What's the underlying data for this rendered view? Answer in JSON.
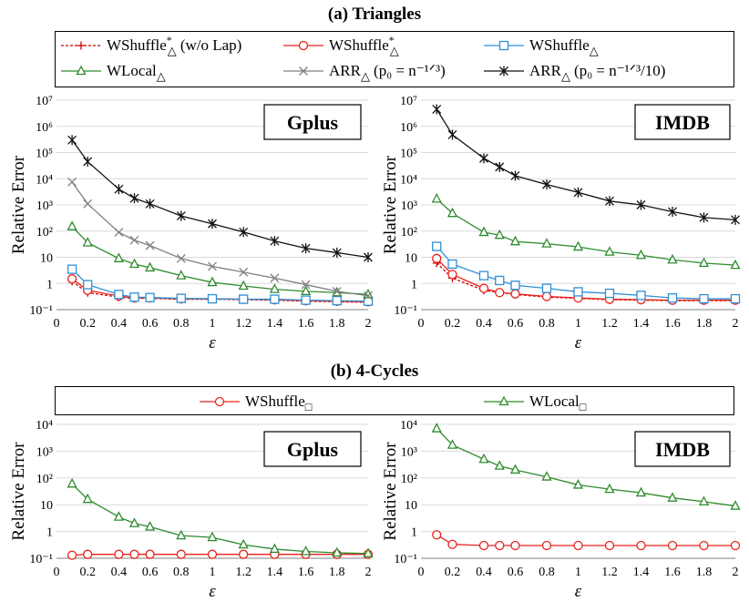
{
  "section_a_title": "(a) Triangles",
  "section_b_title": "(b) 4-Cycles",
  "legend_a": [
    {
      "key": "wshuffle_wolap",
      "label": "WShuffle",
      "sup": "*",
      "sub": "△",
      "suffix": " (w/o Lap)",
      "color": "#cc0000"
    },
    {
      "key": "wshuffle_star",
      "label": "WShuffle",
      "sup": "*",
      "sub": "△",
      "suffix": "",
      "color": "#e8231b"
    },
    {
      "key": "wshuffle",
      "label": "WShuffle",
      "sup": "",
      "sub": "△",
      "suffix": "",
      "color": "#2f8fd6"
    },
    {
      "key": "wlocal",
      "label": "WLocal",
      "sup": "",
      "sub": "△",
      "suffix": "",
      "color": "#2e8b2e"
    },
    {
      "key": "arr1",
      "label": "ARR",
      "sup": "",
      "sub": "△",
      "suffix": " (p₀ = n⁻¹ᐟ³)",
      "color": "#7f7f7f"
    },
    {
      "key": "arr10",
      "label": "ARR",
      "sup": "",
      "sub": "△",
      "suffix": " (p₀ = n⁻¹ᐟ³/10)",
      "color": "#111111"
    }
  ],
  "legend_b": [
    {
      "key": "wshuffle_sq",
      "label": "WShuffle",
      "sub": "□",
      "color": "#e8231b"
    },
    {
      "key": "wlocal_sq",
      "label": "WLocal",
      "sub": "□",
      "color": "#2e8b2e"
    }
  ],
  "chart_data": [
    {
      "id": "tri-gplus",
      "type": "line",
      "title": "Gplus",
      "xlabel": "ε",
      "ylabel": "Relative Error",
      "yscale": "log",
      "ylim": [
        0.1,
        10000000
      ],
      "xlim": [
        0,
        2
      ],
      "xticks": [
        "0",
        "0.2",
        "0.4",
        "0.6",
        "0.8",
        "1",
        "1.2",
        "1.4",
        "1.6",
        "1.8",
        "2"
      ],
      "yticks": [
        "10⁻¹",
        "1",
        "10",
        "10²",
        "10³",
        "10⁴",
        "10⁵",
        "10⁶",
        "10⁷"
      ],
      "x": [
        0.1,
        0.2,
        0.4,
        0.5,
        0.6,
        0.8,
        1.0,
        1.2,
        1.4,
        1.6,
        1.8,
        2.0
      ],
      "series": [
        {
          "name": "WShuffle* (w/o Lap)",
          "key": "wshuffle_wolap",
          "values": [
            1.2,
            0.45,
            0.3,
            0.27,
            0.27,
            0.25,
            0.25,
            0.24,
            0.23,
            0.21,
            0.2,
            0.19
          ]
        },
        {
          "name": "WShuffle*",
          "key": "wshuffle_star",
          "values": [
            1.5,
            0.55,
            0.33,
            0.28,
            0.28,
            0.26,
            0.26,
            0.25,
            0.24,
            0.22,
            0.21,
            0.2
          ]
        },
        {
          "name": "WShuffle",
          "key": "wshuffle",
          "values": [
            3.5,
            0.9,
            0.38,
            0.3,
            0.29,
            0.27,
            0.26,
            0.25,
            0.25,
            0.23,
            0.22,
            0.21
          ]
        },
        {
          "name": "WLocal",
          "key": "wlocal",
          "values": [
            150,
            36,
            9,
            5.5,
            4,
            2,
            1.1,
            0.8,
            0.6,
            0.5,
            0.45,
            0.38
          ]
        },
        {
          "name": "ARR (p0=n^-1/3)",
          "key": "arr1",
          "values": [
            7500,
            1100,
            90,
            45,
            28,
            9,
            4.5,
            2.7,
            1.6,
            0.9,
            0.5,
            0.34
          ]
        },
        {
          "name": "ARR (p0=n^-1/3/10)",
          "key": "arr10",
          "values": [
            300000,
            45000,
            4000,
            1800,
            1100,
            380,
            190,
            92,
            42,
            22,
            15,
            10
          ]
        }
      ]
    },
    {
      "id": "tri-imdb",
      "type": "line",
      "title": "IMDB",
      "xlabel": "ε",
      "ylabel": "Relative Error",
      "yscale": "log",
      "ylim": [
        0.1,
        10000000
      ],
      "xlim": [
        0,
        2
      ],
      "xticks": [
        "0",
        "0.2",
        "0.4",
        "0.6",
        "0.8",
        "1",
        "1.2",
        "1.4",
        "1.6",
        "1.8",
        "2"
      ],
      "yticks": [
        "10⁻¹",
        "1",
        "10",
        "10²",
        "10³",
        "10⁴",
        "10⁵",
        "10⁶",
        "10⁷"
      ],
      "x": [
        0.1,
        0.2,
        0.4,
        0.5,
        0.6,
        0.8,
        1.0,
        1.2,
        1.4,
        1.6,
        1.8,
        2.0
      ],
      "series": [
        {
          "name": "WShuffle* (w/o Lap)",
          "key": "wshuffle_wolap",
          "values": [
            6,
            1.6,
            0.55,
            0.45,
            0.38,
            0.3,
            0.27,
            0.24,
            0.23,
            0.22,
            0.22,
            0.22
          ]
        },
        {
          "name": "WShuffle*",
          "key": "wshuffle_star",
          "values": [
            9,
            2.2,
            0.65,
            0.45,
            0.4,
            0.32,
            0.28,
            0.25,
            0.24,
            0.23,
            0.23,
            0.23
          ]
        },
        {
          "name": "WShuffle",
          "key": "wshuffle",
          "values": [
            26,
            5.5,
            2,
            1.3,
            0.85,
            0.65,
            0.48,
            0.42,
            0.35,
            0.28,
            0.26,
            0.26
          ]
        },
        {
          "name": "WLocal",
          "key": "wlocal",
          "values": [
            1700,
            480,
            90,
            70,
            40,
            33,
            25,
            16,
            12,
            8,
            6,
            5
          ]
        },
        {
          "name": "ARR (p0=n^-1/3/10)",
          "key": "arr10",
          "values": [
            4500000,
            480000,
            60000,
            28000,
            13000,
            6000,
            3000,
            1400,
            1000,
            550,
            330,
            270
          ]
        }
      ]
    },
    {
      "id": "cyc-gplus",
      "type": "line",
      "title": "Gplus",
      "xlabel": "ε",
      "ylabel": "Relative Error",
      "yscale": "log",
      "ylim": [
        0.1,
        10000
      ],
      "xlim": [
        0,
        2
      ],
      "xticks": [
        "0",
        "0.2",
        "0.4",
        "0.6",
        "0.8",
        "1",
        "1.2",
        "1.4",
        "1.6",
        "1.8",
        "2"
      ],
      "yticks": [
        "10⁻¹",
        "1",
        "10",
        "10²",
        "10³",
        "10⁴"
      ],
      "x": [
        0.1,
        0.2,
        0.4,
        0.5,
        0.6,
        0.8,
        1.0,
        1.2,
        1.4,
        1.6,
        1.8,
        2.0
      ],
      "series": [
        {
          "name": "WShuffle□",
          "key": "wshuffle_sq",
          "values": [
            0.13,
            0.14,
            0.14,
            0.14,
            0.14,
            0.14,
            0.14,
            0.14,
            0.14,
            0.14,
            0.14,
            0.14
          ]
        },
        {
          "name": "WLocal□",
          "key": "wlocal_sq",
          "values": [
            60,
            16,
            3.5,
            2,
            1.5,
            0.7,
            0.6,
            0.32,
            0.22,
            0.18,
            0.16,
            0.15
          ]
        }
      ]
    },
    {
      "id": "cyc-imdb",
      "type": "line",
      "title": "IMDB",
      "xlabel": "ε",
      "ylabel": "Relative Error",
      "yscale": "log",
      "ylim": [
        0.1,
        10000
      ],
      "xlim": [
        0,
        2
      ],
      "xticks": [
        "0",
        "0.2",
        "0.4",
        "0.6",
        "0.8",
        "1",
        "1.2",
        "1.4",
        "1.6",
        "1.8",
        "2"
      ],
      "yticks": [
        "10⁻¹",
        "1",
        "10",
        "10²",
        "10³",
        "10⁴"
      ],
      "x": [
        0.1,
        0.2,
        0.4,
        0.5,
        0.6,
        0.8,
        1.0,
        1.2,
        1.4,
        1.6,
        1.8,
        2.0
      ],
      "series": [
        {
          "name": "WShuffle□",
          "key": "wshuffle_sq",
          "values": [
            0.75,
            0.33,
            0.3,
            0.3,
            0.3,
            0.3,
            0.3,
            0.3,
            0.3,
            0.3,
            0.3,
            0.3
          ]
        },
        {
          "name": "WLocal□",
          "key": "wlocal_sq",
          "values": [
            7000,
            1700,
            500,
            280,
            200,
            110,
            55,
            38,
            28,
            18,
            13,
            9
          ]
        }
      ]
    }
  ]
}
